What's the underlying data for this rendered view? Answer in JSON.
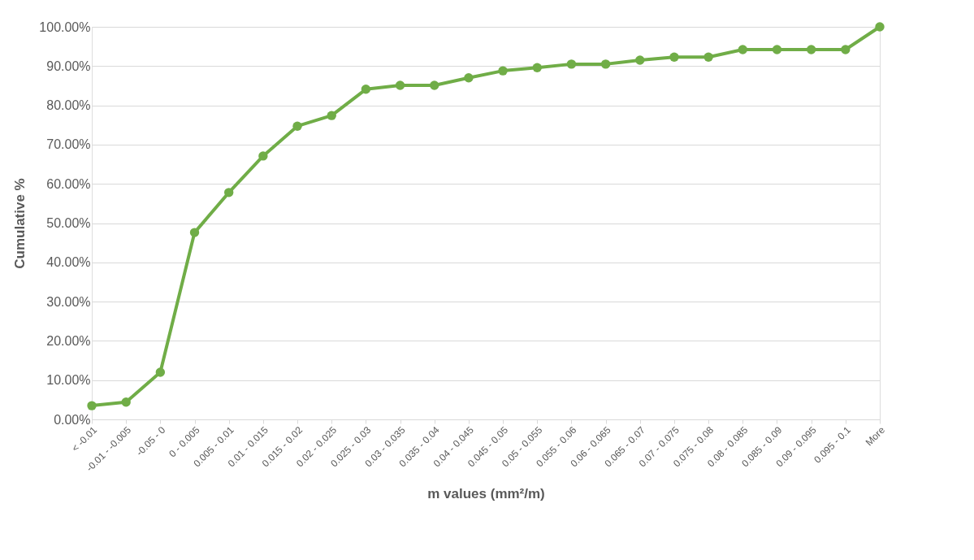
{
  "chart_data": {
    "type": "line",
    "xlabel": "m values (mm²/m)",
    "ylabel": "Cumulative %",
    "categories": [
      "< -0.01",
      "-0.01 - -0.005",
      "-0.05 - 0",
      "0 - 0.005",
      "0.005 - 0.01",
      "0.01 - 0.015",
      "0.015 - 0.02",
      "0.02 - 0.025",
      "0.025 - 0.03",
      "0.03 - 0.035",
      "0.035 - 0.04",
      "0.04 - 0.045",
      "0.045 - 0.05",
      "0.05 - 0.055",
      "0.055 - 0.06",
      "0.06 - 0.065",
      "0.065 - 0.07",
      "0.07 - 0.075",
      "0.075 - 0.08",
      "0.08 - 0.085",
      "0.085 - 0.09",
      "0.09 - 0.095",
      "0.095 - 0.1",
      "More"
    ],
    "series": [
      {
        "color": "#70ad47",
        "values": [
          3.5,
          4.4,
          12.0,
          47.6,
          57.8,
          67.1,
          74.7,
          77.4,
          84.1,
          85.1,
          85.1,
          87.0,
          88.8,
          89.6,
          90.5,
          90.5,
          91.5,
          92.3,
          92.3,
          94.2,
          94.2,
          94.2,
          94.2,
          100
        ]
      }
    ],
    "ylim": [
      0,
      100
    ],
    "yticks": [
      {
        "value": 0,
        "label": "0.00%"
      },
      {
        "value": 10,
        "label": "10.00%"
      },
      {
        "value": 20,
        "label": "20.00%"
      },
      {
        "value": 30,
        "label": "30.00%"
      },
      {
        "value": 40,
        "label": "40.00%"
      },
      {
        "value": 50,
        "label": "50.00%"
      },
      {
        "value": 60,
        "label": "60.00%"
      },
      {
        "value": 70,
        "label": "70.00%"
      },
      {
        "value": 80,
        "label": "80.00%"
      },
      {
        "value": 90,
        "label": "90.00%"
      },
      {
        "value": 100,
        "label": "100.00%"
      }
    ],
    "grid": "y",
    "marker": "circle",
    "line_style": "solid"
  }
}
